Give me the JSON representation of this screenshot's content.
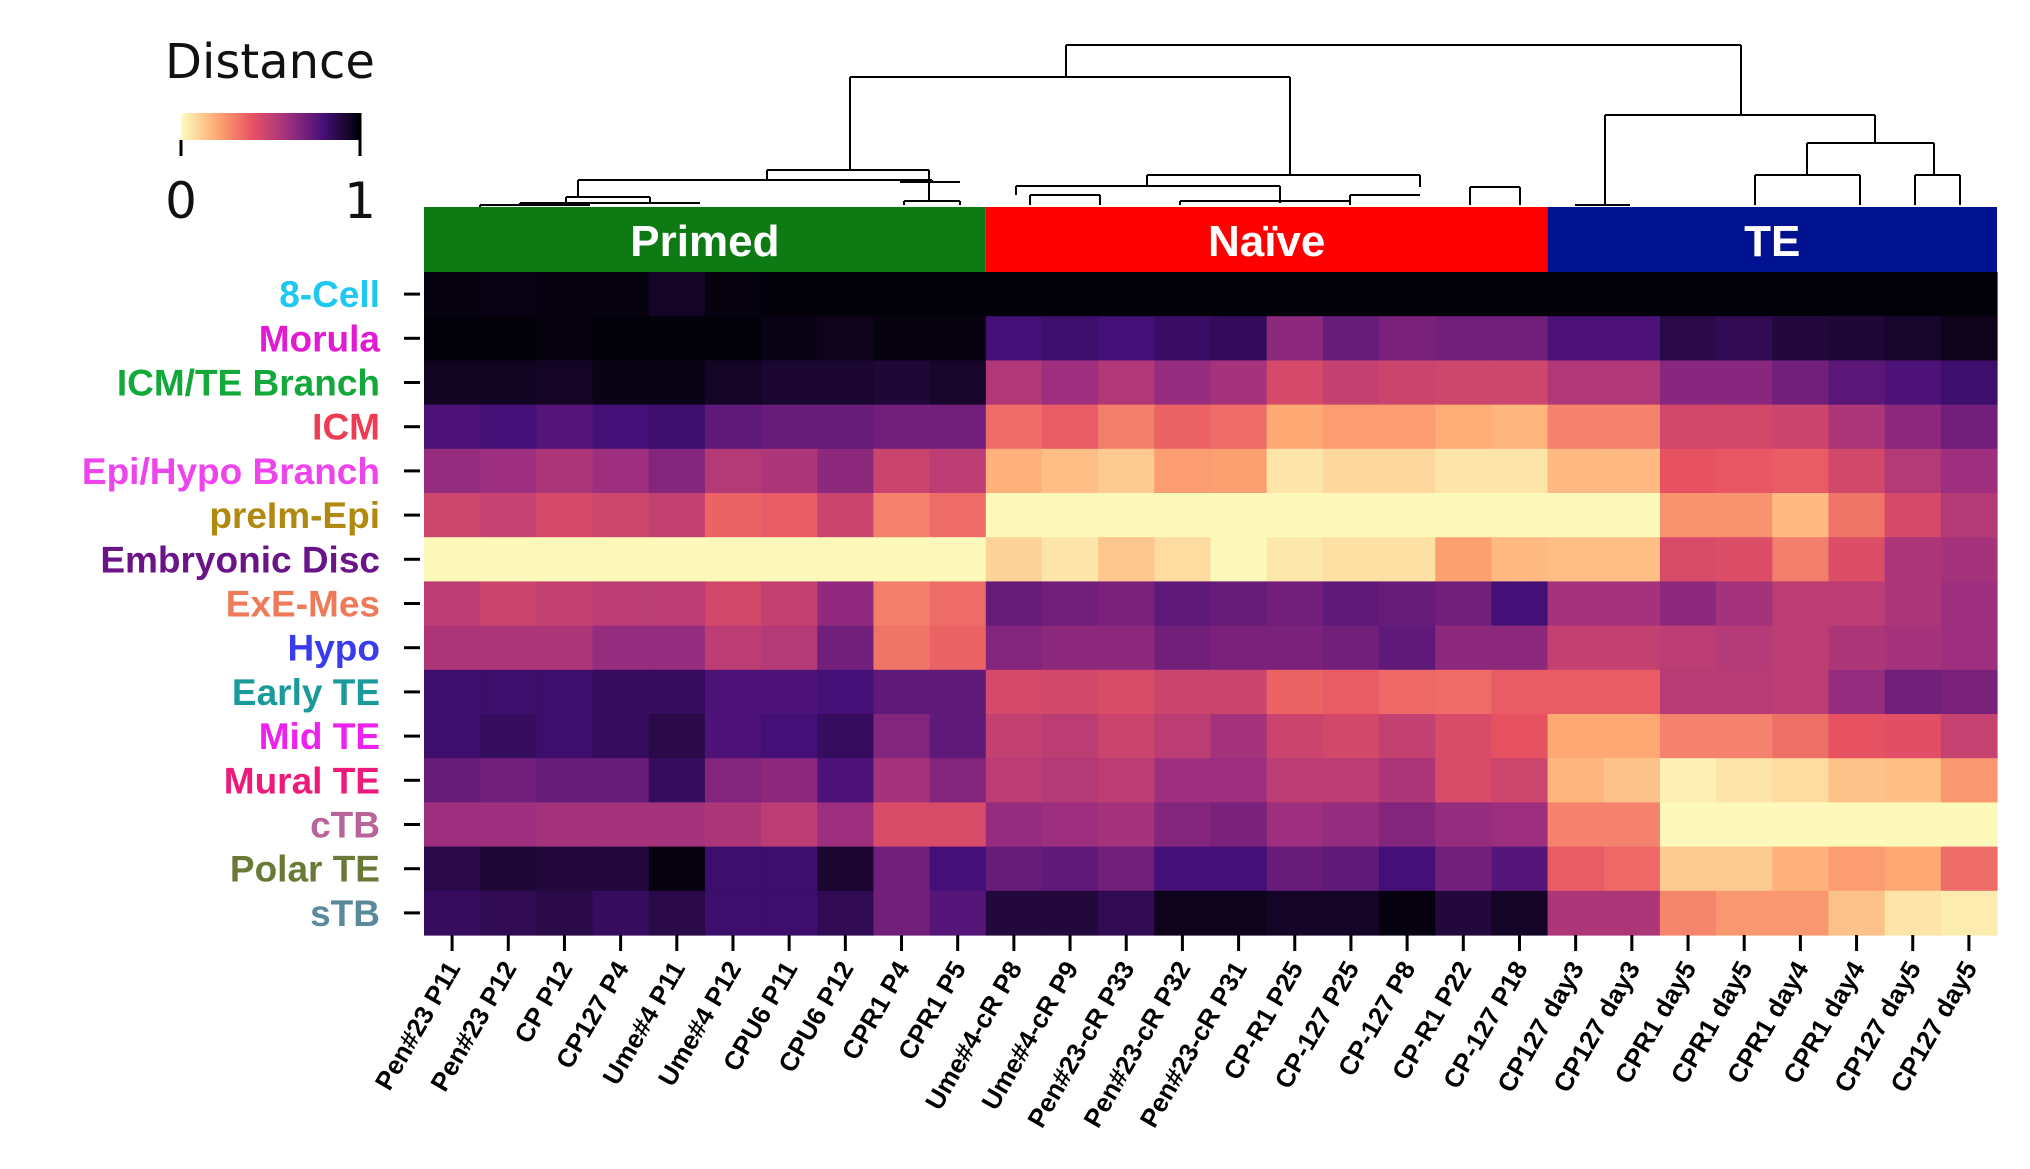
{
  "chart_data": {
    "type": "heatmap",
    "colorbar": {
      "title": "Distance",
      "min_label": "0",
      "max_label": "1",
      "range": [
        0,
        1
      ],
      "colormap": "magma_r"
    },
    "groups": [
      {
        "label": "Primed",
        "color": "#0e7a14",
        "columns": [
          0,
          9
        ]
      },
      {
        "label": "Naïve",
        "color": "#ff0000",
        "columns": [
          10,
          19
        ]
      },
      {
        "label": "TE",
        "color": "#00128f",
        "columns": [
          20,
          27
        ]
      }
    ],
    "columns": [
      "Pen#23 P11",
      "Pen#23 P12",
      "CP P12",
      "CP127 P4",
      "Ume#4 P11",
      "Ume#4 P12",
      "CPU6 P11",
      "CPU6 P12",
      "CPR1 P4",
      "CPR1 P5",
      "Ume#4-cR P8",
      "Ume#4-cR P9",
      "Pen#23-cR P33",
      "Pen#23-cR P32",
      "Pen#23-cR P31",
      "CP-R1 P25",
      "CP-127 P25",
      "CP-127 P8",
      "CP-R1 P22",
      "CP-127 P18",
      "CP127 day3",
      "CP127 day3",
      "CPR1 day5",
      "CPR1 day5",
      "CPR1 day4",
      "CPR1 day4",
      "CP127 day5",
      "CP127 day5"
    ],
    "rows": [
      {
        "label": "8-Cell",
        "color": "#1ec8f0"
      },
      {
        "label": "Morula",
        "color": "#e21bd2"
      },
      {
        "label": "ICM/TE Branch",
        "color": "#12a83a"
      },
      {
        "label": "ICM",
        "color": "#ef3c55"
      },
      {
        "label": "Epi/Hypo Branch",
        "color": "#ee44ee"
      },
      {
        "label": "preIm-Epi",
        "color": "#b08a10"
      },
      {
        "label": "Embryonic Disc",
        "color": "#6a1488"
      },
      {
        "label": "ExE-Mes",
        "color": "#ef7a5a"
      },
      {
        "label": "Hypo",
        "color": "#3a3aee"
      },
      {
        "label": "Early TE",
        "color": "#1a9a9a"
      },
      {
        "label": "Mid TE",
        "color": "#ee22ee"
      },
      {
        "label": "Mural TE",
        "color": "#ee1a7a"
      },
      {
        "label": "cTB",
        "color": "#b8649a"
      },
      {
        "label": "Polar TE",
        "color": "#6a7a36"
      },
      {
        "label": "sTB",
        "color": "#5a8a9a"
      }
    ],
    "values": [
      [
        0.98,
        0.97,
        0.98,
        0.98,
        0.94,
        0.98,
        0.99,
        0.99,
        0.99,
        0.99,
        0.99,
        0.99,
        0.99,
        0.99,
        0.99,
        0.99,
        0.99,
        0.99,
        0.99,
        0.99,
        0.99,
        0.99,
        0.99,
        0.99,
        0.99,
        0.99,
        0.99,
        0.99
      ],
      [
        0.99,
        0.99,
        0.98,
        0.99,
        0.99,
        0.99,
        0.97,
        0.96,
        0.98,
        0.98,
        0.8,
        0.82,
        0.8,
        0.83,
        0.85,
        0.64,
        0.72,
        0.68,
        0.7,
        0.7,
        0.78,
        0.78,
        0.88,
        0.86,
        0.9,
        0.91,
        0.93,
        0.96
      ],
      [
        0.95,
        0.95,
        0.94,
        0.97,
        0.97,
        0.94,
        0.92,
        0.92,
        0.91,
        0.93,
        0.55,
        0.6,
        0.55,
        0.62,
        0.58,
        0.45,
        0.5,
        0.48,
        0.47,
        0.47,
        0.55,
        0.55,
        0.65,
        0.65,
        0.7,
        0.75,
        0.78,
        0.82
      ],
      [
        0.78,
        0.8,
        0.76,
        0.8,
        0.82,
        0.74,
        0.72,
        0.72,
        0.7,
        0.7,
        0.34,
        0.38,
        0.3,
        0.36,
        0.34,
        0.2,
        0.23,
        0.23,
        0.19,
        0.17,
        0.29,
        0.29,
        0.46,
        0.46,
        0.48,
        0.56,
        0.64,
        0.7
      ],
      [
        0.62,
        0.6,
        0.56,
        0.6,
        0.66,
        0.54,
        0.56,
        0.64,
        0.48,
        0.52,
        0.18,
        0.15,
        0.12,
        0.23,
        0.22,
        0.06,
        0.09,
        0.09,
        0.06,
        0.06,
        0.16,
        0.16,
        0.4,
        0.39,
        0.38,
        0.46,
        0.54,
        0.6
      ],
      [
        0.47,
        0.49,
        0.45,
        0.47,
        0.5,
        0.36,
        0.38,
        0.48,
        0.29,
        0.34,
        0.01,
        0.01,
        0.01,
        0.01,
        0.01,
        0.01,
        0.01,
        0.01,
        0.01,
        0.01,
        0.01,
        0.01,
        0.25,
        0.25,
        0.16,
        0.32,
        0.45,
        0.54
      ],
      [
        0.01,
        0.01,
        0.01,
        0.01,
        0.01,
        0.01,
        0.01,
        0.01,
        0.01,
        0.01,
        0.1,
        0.06,
        0.13,
        0.08,
        0.01,
        0.05,
        0.07,
        0.07,
        0.22,
        0.16,
        0.15,
        0.15,
        0.44,
        0.43,
        0.3,
        0.43,
        0.56,
        0.58
      ],
      [
        0.52,
        0.48,
        0.5,
        0.52,
        0.52,
        0.46,
        0.5,
        0.63,
        0.3,
        0.34,
        0.72,
        0.7,
        0.68,
        0.74,
        0.72,
        0.7,
        0.74,
        0.72,
        0.7,
        0.8,
        0.58,
        0.58,
        0.64,
        0.58,
        0.52,
        0.52,
        0.56,
        0.6
      ],
      [
        0.56,
        0.56,
        0.56,
        0.62,
        0.62,
        0.52,
        0.54,
        0.7,
        0.32,
        0.36,
        0.66,
        0.64,
        0.64,
        0.7,
        0.68,
        0.68,
        0.7,
        0.74,
        0.64,
        0.64,
        0.5,
        0.5,
        0.52,
        0.54,
        0.52,
        0.56,
        0.58,
        0.6
      ],
      [
        0.82,
        0.82,
        0.82,
        0.84,
        0.84,
        0.78,
        0.78,
        0.8,
        0.74,
        0.74,
        0.45,
        0.46,
        0.44,
        0.48,
        0.48,
        0.36,
        0.38,
        0.35,
        0.34,
        0.38,
        0.38,
        0.38,
        0.53,
        0.53,
        0.52,
        0.62,
        0.7,
        0.68
      ],
      [
        0.82,
        0.84,
        0.82,
        0.84,
        0.88,
        0.78,
        0.8,
        0.84,
        0.66,
        0.74,
        0.5,
        0.52,
        0.48,
        0.52,
        0.58,
        0.48,
        0.46,
        0.5,
        0.44,
        0.4,
        0.2,
        0.2,
        0.29,
        0.29,
        0.33,
        0.4,
        0.42,
        0.49
      ],
      [
        0.72,
        0.7,
        0.72,
        0.72,
        0.84,
        0.66,
        0.64,
        0.78,
        0.58,
        0.66,
        0.52,
        0.54,
        0.52,
        0.6,
        0.6,
        0.52,
        0.52,
        0.56,
        0.44,
        0.47,
        0.17,
        0.14,
        0.03,
        0.06,
        0.08,
        0.14,
        0.15,
        0.24
      ],
      [
        0.6,
        0.6,
        0.58,
        0.58,
        0.58,
        0.56,
        0.52,
        0.6,
        0.44,
        0.44,
        0.62,
        0.6,
        0.58,
        0.66,
        0.68,
        0.6,
        0.62,
        0.66,
        0.62,
        0.6,
        0.29,
        0.29,
        0.01,
        0.01,
        0.01,
        0.01,
        0.01,
        0.01
      ],
      [
        0.88,
        0.91,
        0.9,
        0.9,
        0.98,
        0.82,
        0.82,
        0.92,
        0.7,
        0.8,
        0.72,
        0.74,
        0.7,
        0.8,
        0.8,
        0.72,
        0.74,
        0.8,
        0.7,
        0.76,
        0.38,
        0.35,
        0.12,
        0.12,
        0.18,
        0.23,
        0.2,
        0.34
      ],
      [
        0.84,
        0.86,
        0.88,
        0.84,
        0.88,
        0.82,
        0.82,
        0.86,
        0.7,
        0.76,
        0.9,
        0.9,
        0.86,
        0.96,
        0.96,
        0.94,
        0.94,
        0.98,
        0.9,
        0.94,
        0.56,
        0.56,
        0.28,
        0.24,
        0.24,
        0.14,
        0.06,
        0.04
      ]
    ]
  }
}
